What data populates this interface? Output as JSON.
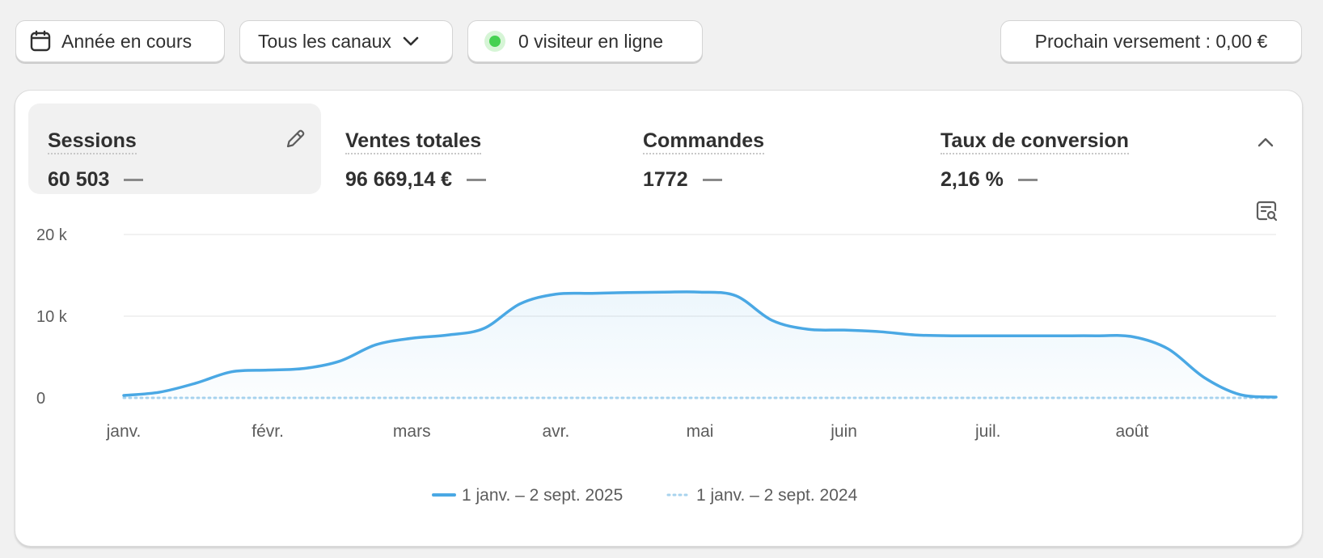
{
  "toolbar": {
    "period_label": "Année en cours",
    "channels_label": "Tous les canaux",
    "visitors_label": "0 visiteur en ligne",
    "payout_label": "Prochain versement : 0,00 €"
  },
  "metrics": [
    {
      "label": "Sessions",
      "value": "60 503"
    },
    {
      "label": "Ventes totales",
      "value": "96 669,14 €"
    },
    {
      "label": "Commandes",
      "value": "1772"
    },
    {
      "label": "Taux de conversion",
      "value": "2,16 %"
    }
  ],
  "colors": {
    "accent": "#4aa8e4",
    "previous": "#a8d3ee",
    "live": "#45d151"
  },
  "chart_data": {
    "type": "line",
    "title": "Sessions",
    "xlabel": "",
    "ylabel": "",
    "ylim": [
      0,
      20000
    ],
    "yticks": [
      0,
      10000,
      20000
    ],
    "ytick_labels": [
      "0",
      "10 k",
      "20 k"
    ],
    "categories": [
      "janv.",
      "févr.",
      "mars",
      "avr.",
      "mai",
      "juin",
      "juil.",
      "août"
    ],
    "x": [
      0,
      0.25,
      0.5,
      0.75,
      1,
      1.25,
      1.5,
      1.75,
      2,
      2.25,
      2.5,
      2.75,
      3,
      3.25,
      3.5,
      3.75,
      4,
      4.25,
      4.5,
      4.75,
      5,
      5.25,
      5.5,
      5.75,
      6,
      6.25,
      6.5,
      6.75,
      7,
      7.25,
      7.5,
      7.75,
      8
    ],
    "series": [
      {
        "name": "1 janv. – 2 sept. 2025",
        "style": "solid",
        "values": [
          300,
          700,
          1800,
          3200,
          3400,
          3600,
          4500,
          6500,
          7300,
          7700,
          8500,
          11500,
          12700,
          12800,
          12900,
          12950,
          12950,
          12500,
          9500,
          8400,
          8300,
          8100,
          7700,
          7600,
          7600,
          7600,
          7600,
          7600,
          7500,
          6000,
          2500,
          400,
          100
        ]
      },
      {
        "name": "1 janv. – 2 sept. 2024",
        "style": "dotted",
        "values": [
          0,
          0,
          0,
          0,
          0,
          0,
          0,
          0,
          0,
          0,
          0,
          0,
          0,
          0,
          0,
          0,
          0,
          0,
          0,
          0,
          0,
          0,
          0,
          0,
          0,
          0,
          0,
          0,
          0,
          0,
          0,
          0,
          0
        ]
      }
    ]
  }
}
